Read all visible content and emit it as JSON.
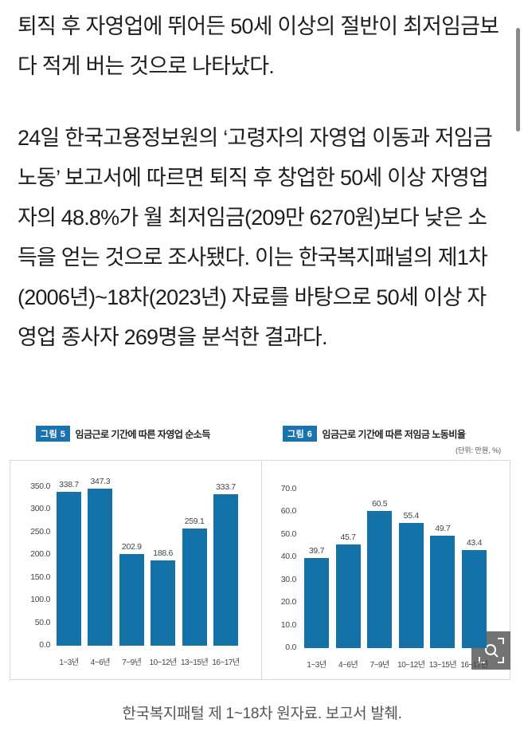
{
  "article": {
    "paragraph1": "퇴직 후 자영업에 뛰어든 50세 이상의 절반이 최저임금보다 적게 버는 것으로 나타났다.",
    "paragraph2": "24일 한국고용정보원의 ‘고령자의 자영업 이동과 저임금 노동’ 보고서에 따르면 퇴직 후 창업한 50세 이상 자영업자의 48.8%가 월 최저임금(209만 6270원)보다 낮은 소득을 얻는 것으로 조사됐다. 이는 한국복지패널의 제1차(2006년)~18차(2023년) 자료를 바탕으로 50세 이상 자영업 종사자 269명을 분석한 결과다."
  },
  "figure": {
    "fig5": {
      "badge": "그림 5",
      "title": "임금근로 기간에 따른 자영업 순소득"
    },
    "fig6": {
      "badge": "그림 6",
      "title": "임금근로 기간에 따른 저임금 노동비율"
    },
    "unit": "(단위: 만원, %)",
    "caption": "한국복지패털 제 1~18차 원자료. 보고서 발췌.",
    "zoom_icon": "magnify-expand-icon"
  },
  "colors": {
    "bar": "#1572a8",
    "badge": "#1a73ad"
  },
  "chart_data": [
    {
      "type": "bar",
      "title": "임금근로 기간에 따른 자영업 순소득",
      "categories": [
        "1~3년",
        "4~6년",
        "7~9년",
        "10~12년",
        "13~15년",
        "16~17년"
      ],
      "values": [
        338.7,
        347.3,
        202.9,
        188.6,
        259.1,
        333.7
      ],
      "value_labels": [
        "338.7",
        "347.3",
        "202.9",
        "188.6",
        "259.1",
        "333.7"
      ],
      "yticks": [
        "350.0",
        "300.0",
        "250.0",
        "200.0",
        "150.0",
        "100.0",
        "50.0",
        "0.0"
      ],
      "xlabel": "",
      "ylabel": "",
      "ylim": [
        0,
        350
      ],
      "unit": "만원",
      "grid": false
    },
    {
      "type": "bar",
      "title": "임금근로 기간에 따른 저임금 노동비율",
      "categories": [
        "1~3년",
        "4~6년",
        "7~9년",
        "10~12년",
        "13~15년",
        "16~17년"
      ],
      "values": [
        39.7,
        45.7,
        60.5,
        55.4,
        49.7,
        43.4
      ],
      "value_labels": [
        "39.7",
        "45.7",
        "60.5",
        "55.4",
        "49.7",
        "43.4"
      ],
      "yticks": [
        "70.0",
        "60.0",
        "50.0",
        "40.0",
        "30.0",
        "20.0",
        "10.0",
        "0.0"
      ],
      "xlabel": "",
      "ylabel": "",
      "ylim": [
        0,
        70
      ],
      "unit": "%",
      "grid": false
    }
  ]
}
